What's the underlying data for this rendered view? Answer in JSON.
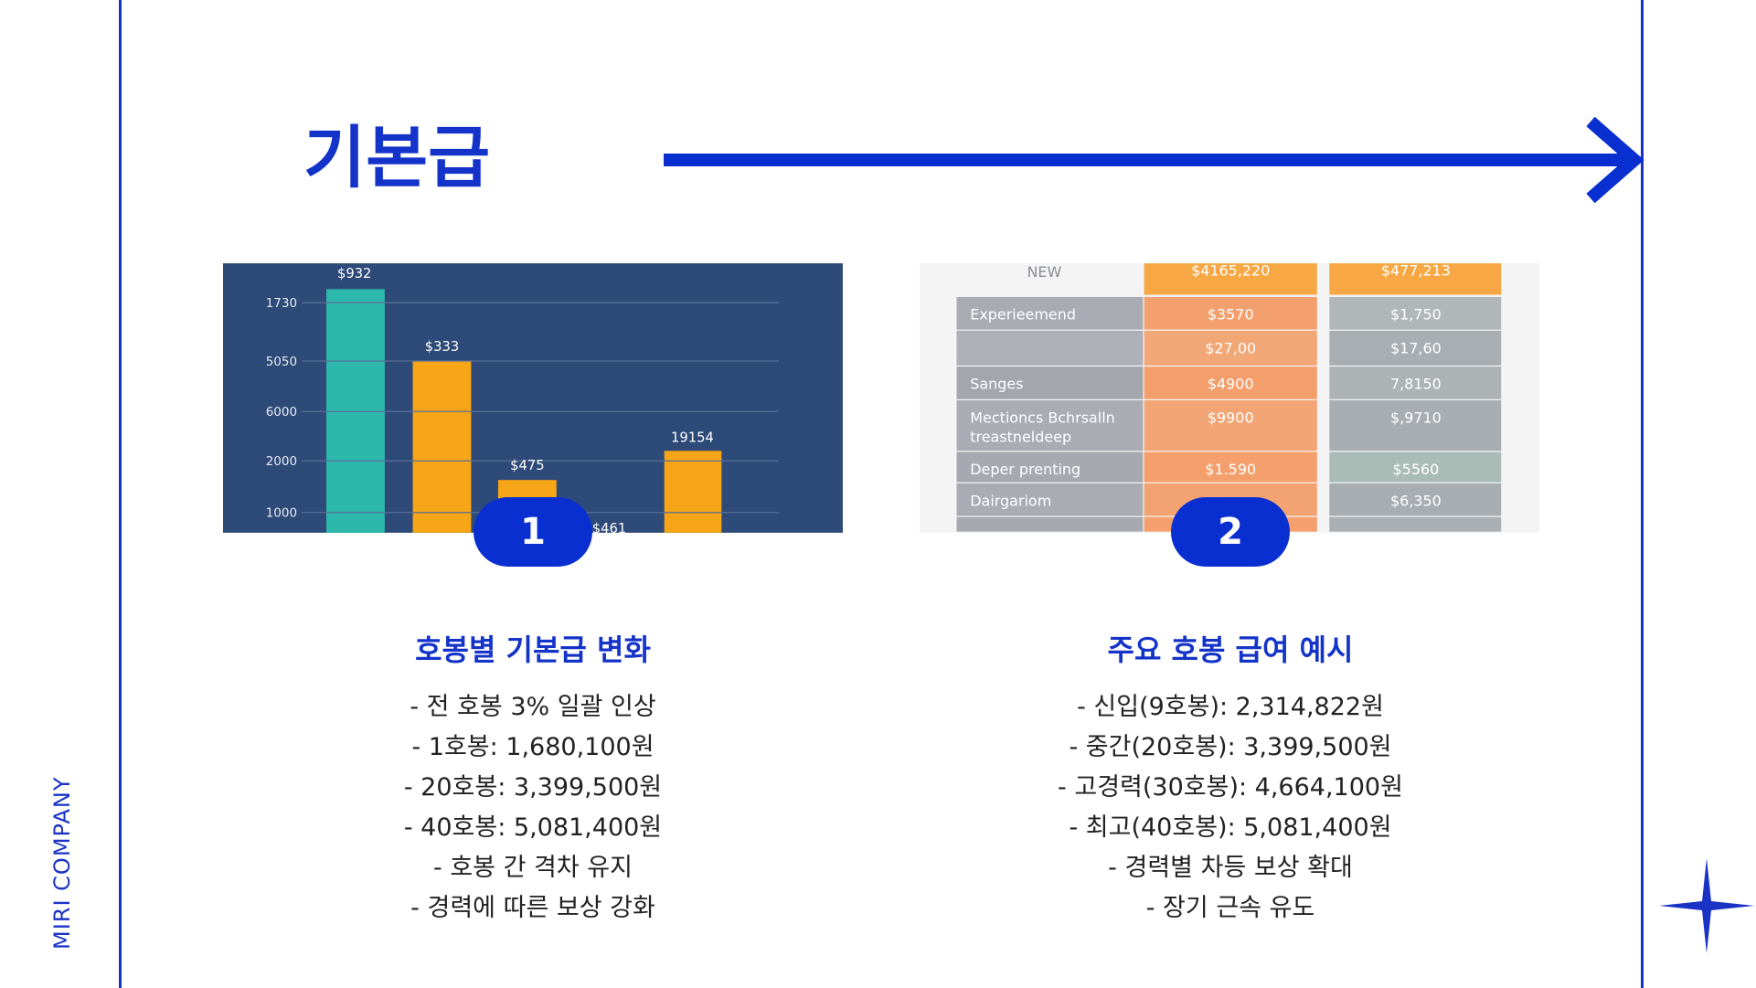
{
  "title": "기본급",
  "brand": "MIRI COMPANY",
  "cards": [
    {
      "badge": 1,
      "heading": "호봉별 기본급 변화",
      "items": [
        "- 전 호봉 3% 일괄 인상",
        "- 1호봉: 1,680,100원",
        "- 20호봉: 3,399,500원",
        "- 40호봉: 5,081,400원",
        "- 호봉 간 격차 유지",
        "- 경력에 따른 보상 강화"
      ]
    },
    {
      "badge": 2,
      "heading": "주요 호봉 급여 예시",
      "items": [
        "- 신입(9호봉): 2,314,822원",
        "- 중간(20호봉): 3,399,500원",
        "- 고경력(30호봉): 4,664,100원",
        "- 최고(40호봉): 5,081,400원",
        "- 경력별 차등 보상 확대",
        "- 장기 근속 유도"
      ]
    }
  ],
  "chart_image": {
    "axis_labels": [
      "1730",
      "5050",
      "6000",
      "2000",
      "1000"
    ],
    "bar_labels": [
      "$932",
      "$333",
      "$475",
      "$461",
      "19154"
    ]
  },
  "table_image": {
    "header": [
      "NEW",
      "$4165,220",
      "$477,213"
    ],
    "rows": [
      {
        "label_lines": [
          "Experieemend"
        ],
        "cells": [
          "$3570",
          "$1,750"
        ]
      },
      {
        "label_lines": [],
        "cells": [
          "$27,00",
          "$17,60"
        ]
      },
      {
        "label_lines": [
          "Sanges"
        ],
        "cells": [
          "$4900",
          "7,8150"
        ]
      },
      {
        "label_lines": [
          "Mectioncs Bchrsalln",
          "treastneldeep"
        ],
        "cells": [
          "$9900",
          "$,9710"
        ]
      },
      {
        "label_lines": [
          "Deper prenting"
        ],
        "cells": [
          "$1.590",
          "$5560"
        ]
      },
      {
        "label_lines": [
          "Dairgariom"
        ],
        "cells": [
          null,
          "$6,350"
        ]
      }
    ]
  }
}
